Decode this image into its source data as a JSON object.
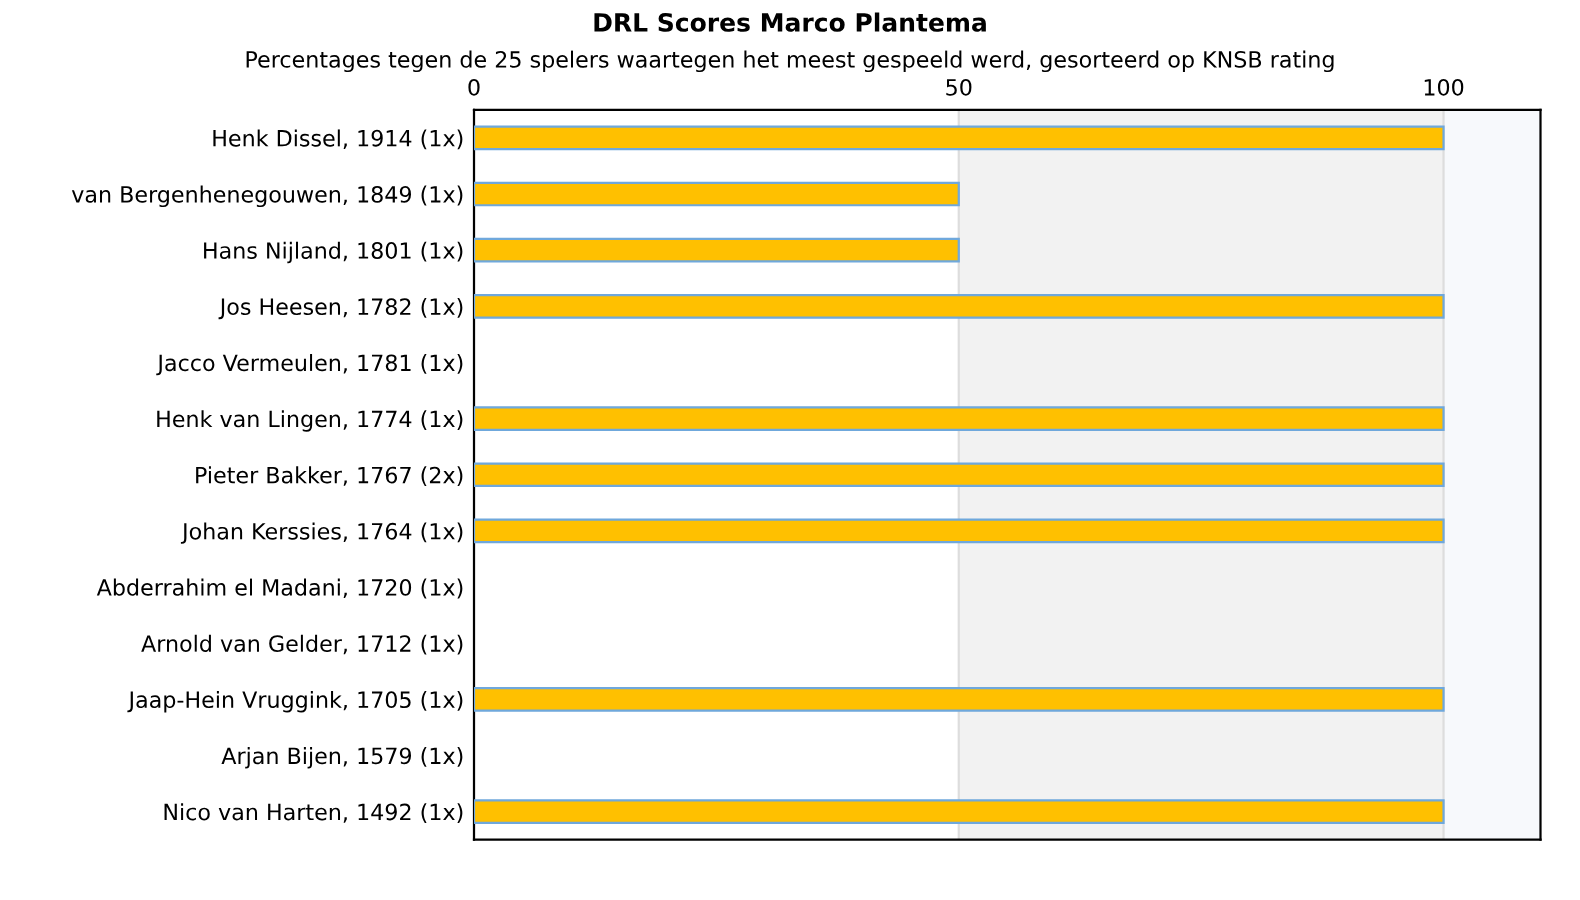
{
  "chart_data": {
    "type": "bar",
    "orientation": "horizontal",
    "title": "DRL Scores Marco Plantema",
    "subtitle": "Percentages tegen de 25 spelers waartegen het meest gespeeld werd, gesorteerd op KNSB rating",
    "categories": [
      "Henk Dissel, 1914 (1x)",
      "van Bergenhenegouwen, 1849 (1x)",
      "Hans Nijland, 1801 (1x)",
      "Jos Heesen, 1782 (1x)",
      "Jacco Vermeulen, 1781 (1x)",
      "Henk van Lingen, 1774 (1x)",
      "Pieter Bakker, 1767 (2x)",
      "Johan Kerssies, 1764 (1x)",
      "Abderrahim el Madani, 1720 (1x)",
      "Arnold van Gelder, 1712 (1x)",
      "Jaap-Hein Vruggink, 1705 (1x)",
      "Arjan Bijen, 1579 (1x)",
      "Nico van Harten, 1492 (1x)"
    ],
    "values": [
      100,
      50,
      50,
      100,
      0,
      100,
      100,
      100,
      0,
      0,
      100,
      0,
      100
    ],
    "color": "#ffc000",
    "xlim": [
      0,
      110
    ],
    "xticks": [
      0,
      50,
      100
    ],
    "grid": "x",
    "bands": [
      {
        "axis": "x",
        "from": 50,
        "to": 100,
        "color": "#f2f2f2"
      },
      {
        "axis": "x",
        "from": 100,
        "to": 110,
        "color": "#f7f9fc"
      }
    ]
  }
}
